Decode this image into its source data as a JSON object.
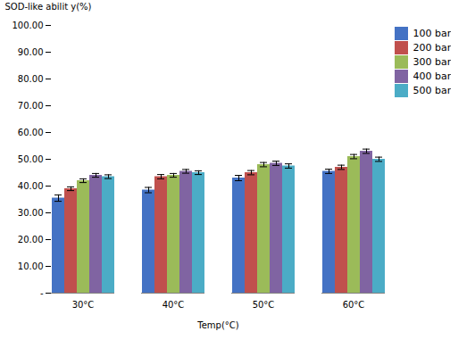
{
  "chart_data": {
    "type": "bar",
    "categories": [
      "30°C",
      "40°C",
      "50°C",
      "60°C"
    ],
    "series": [
      {
        "name": "100 bar",
        "color": "#4472C4",
        "values": [
          35.5,
          38.5,
          43.0,
          45.5
        ],
        "errors": [
          1.2,
          1.0,
          1.0,
          0.8
        ]
      },
      {
        "name": "200 bar",
        "color": "#C0504D",
        "values": [
          39.0,
          43.5,
          45.0,
          47.0
        ],
        "errors": [
          0.7,
          0.8,
          0.8,
          0.8
        ]
      },
      {
        "name": "300 bar",
        "color": "#9BBB59",
        "values": [
          42.0,
          44.0,
          48.0,
          51.0
        ],
        "errors": [
          0.7,
          0.7,
          0.8,
          0.8
        ]
      },
      {
        "name": "400 bar",
        "color": "#8064A2",
        "values": [
          44.0,
          45.5,
          48.5,
          53.0
        ],
        "errors": [
          0.7,
          0.7,
          0.8,
          0.8
        ]
      },
      {
        "name": "500 bar",
        "color": "#4BACC6",
        "values": [
          43.5,
          45.0,
          47.5,
          50.0
        ],
        "errors": [
          0.7,
          0.7,
          0.8,
          0.8
        ]
      }
    ],
    "xlabel": "Temp(°C)",
    "ylabel": "SOD-like abilit y(%)",
    "ylim": [
      0,
      100
    ],
    "yticks": [
      {
        "value": 0,
        "label": "-"
      },
      {
        "value": 10,
        "label": "10.00"
      },
      {
        "value": 20,
        "label": "20.00"
      },
      {
        "value": 30,
        "label": "30.00"
      },
      {
        "value": 40,
        "label": "40.00"
      },
      {
        "value": 50,
        "label": "50.00"
      },
      {
        "value": 60,
        "label": "60.00"
      },
      {
        "value": 70,
        "label": "70.00"
      },
      {
        "value": 80,
        "label": "80.00"
      },
      {
        "value": 90,
        "label": "90.00"
      },
      {
        "value": 100,
        "label": "100.00"
      }
    ],
    "grid": false,
    "legend": "right"
  }
}
